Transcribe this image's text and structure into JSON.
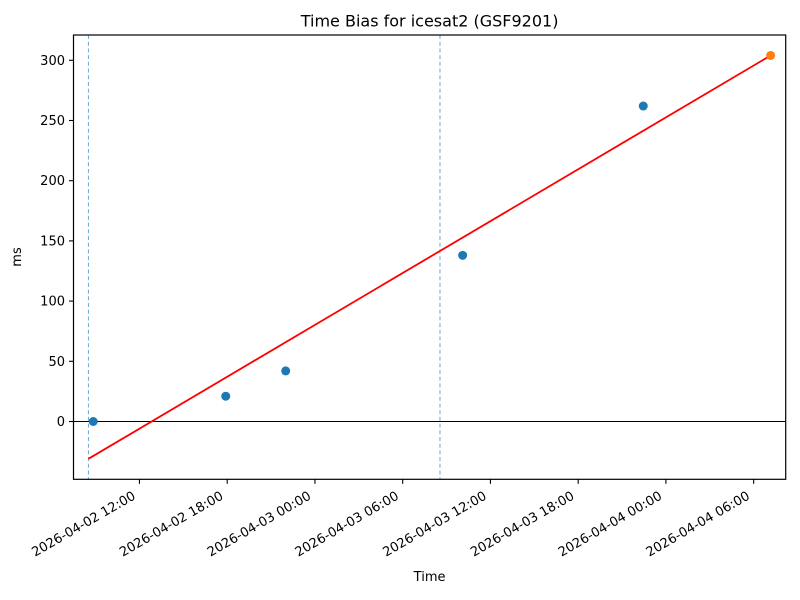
{
  "chart_data": {
    "type": "scatter",
    "title": "Time Bias for icesat2 (GSF9201)",
    "xlabel": "Time",
    "ylabel": "ms",
    "xlim_hours_since_2026_04_02_0000": [
      7.49,
      56.19
    ],
    "ylim": [
      -48,
      321
    ],
    "grid": false,
    "legend": "none",
    "y_ticks": [
      0,
      50,
      100,
      150,
      200,
      250,
      300
    ],
    "x_ticks": [
      {
        "hour": 12,
        "label": "2026-04-02 12:00"
      },
      {
        "hour": 18,
        "label": "2026-04-02 18:00"
      },
      {
        "hour": 24,
        "label": "2026-04-03 00:00"
      },
      {
        "hour": 30,
        "label": "2026-04-03 06:00"
      },
      {
        "hour": 36,
        "label": "2026-04-03 12:00"
      },
      {
        "hour": 42,
        "label": "2026-04-03 18:00"
      },
      {
        "hour": 48,
        "label": "2026-04-04 00:00"
      },
      {
        "hour": 54,
        "label": "2026-04-04 06:00"
      }
    ],
    "vlines": [
      {
        "hour": 8.51,
        "time": "2026-04-02 08:30"
      },
      {
        "hour": 32.55,
        "time": "2026-04-03 08:30"
      }
    ],
    "vline_style": {
      "color": "#1f77b4",
      "opacity": 0.65,
      "dash": "4 2.7"
    },
    "hline_y": 0,
    "hline_color": "#000000",
    "series": [
      {
        "name": "time-bias-observations",
        "color": "#1f77b4",
        "marker": "circle",
        "points": [
          {
            "time": "2026-04-02 08:50",
            "hour": 8.84,
            "ms": 0
          },
          {
            "time": "2026-04-02 17:55",
            "hour": 17.9,
            "ms": 21
          },
          {
            "time": "2026-04-02 22:00",
            "hour": 22.0,
            "ms": 42
          },
          {
            "time": "2026-04-03 10:05",
            "hour": 34.1,
            "ms": 138
          },
          {
            "time": "2026-04-03 22:25",
            "hour": 46.45,
            "ms": 262
          }
        ]
      },
      {
        "name": "latest-observation",
        "color": "#ff7f0e",
        "marker": "circle",
        "points": [
          {
            "time": "2026-04-04 07:10",
            "hour": 55.16,
            "ms": 304
          }
        ]
      }
    ],
    "trend_line": {
      "color": "#ff0000",
      "from": {
        "hour": 8.51,
        "ms": -31
      },
      "to": {
        "hour": 55.16,
        "ms": 304
      }
    }
  }
}
